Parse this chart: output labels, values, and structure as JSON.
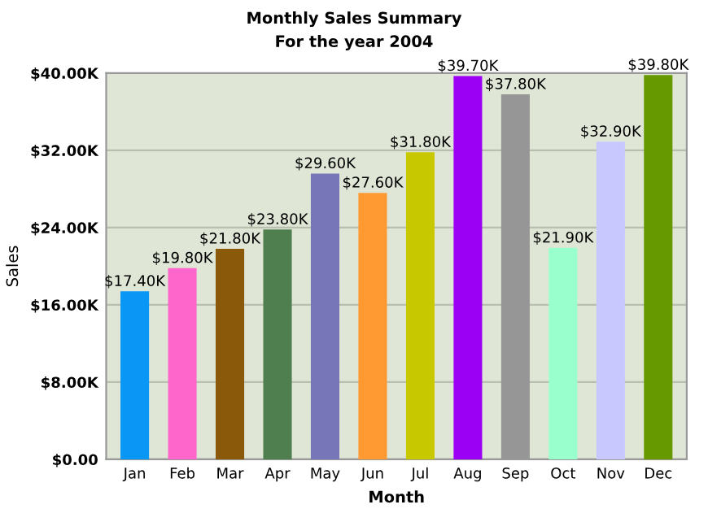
{
  "chart_data": {
    "type": "bar",
    "title": "Monthly Sales Summary",
    "subtitle": "For the year 2004",
    "xlabel": "Month",
    "ylabel": "Sales",
    "categories": [
      "Jan",
      "Feb",
      "Mar",
      "Apr",
      "May",
      "Jun",
      "Jul",
      "Aug",
      "Sep",
      "Oct",
      "Nov",
      "Dec"
    ],
    "values": [
      17.4,
      19.8,
      21.8,
      23.8,
      29.6,
      27.6,
      31.8,
      39.7,
      37.8,
      21.9,
      32.9,
      39.8
    ],
    "value_labels": [
      "$17.40K",
      "$19.80K",
      "$21.80K",
      "$23.80K",
      "$29.60K",
      "$27.60K",
      "$31.80K",
      "$39.70K",
      "$37.80K",
      "$21.90K",
      "$32.90K",
      "$39.80K"
    ],
    "colors": [
      "#0a96f5",
      "#ff66cc",
      "#8a5a0a",
      "#4f7f4f",
      "#7676b8",
      "#ff9a33",
      "#c8c800",
      "#9b00f5",
      "#969696",
      "#99ffcc",
      "#c8c8ff",
      "#669900"
    ],
    "ylim": [
      0,
      40
    ],
    "yticks": [
      {
        "value": 0,
        "label": "$0.00"
      },
      {
        "value": 8,
        "label": "$8.00K"
      },
      {
        "value": 16,
        "label": "$16.00K"
      },
      {
        "value": 24,
        "label": "$24.00K"
      },
      {
        "value": 32,
        "label": "$32.00K"
      },
      {
        "value": 40,
        "label": "$40.00K"
      }
    ],
    "grid": "y",
    "legend": false
  }
}
